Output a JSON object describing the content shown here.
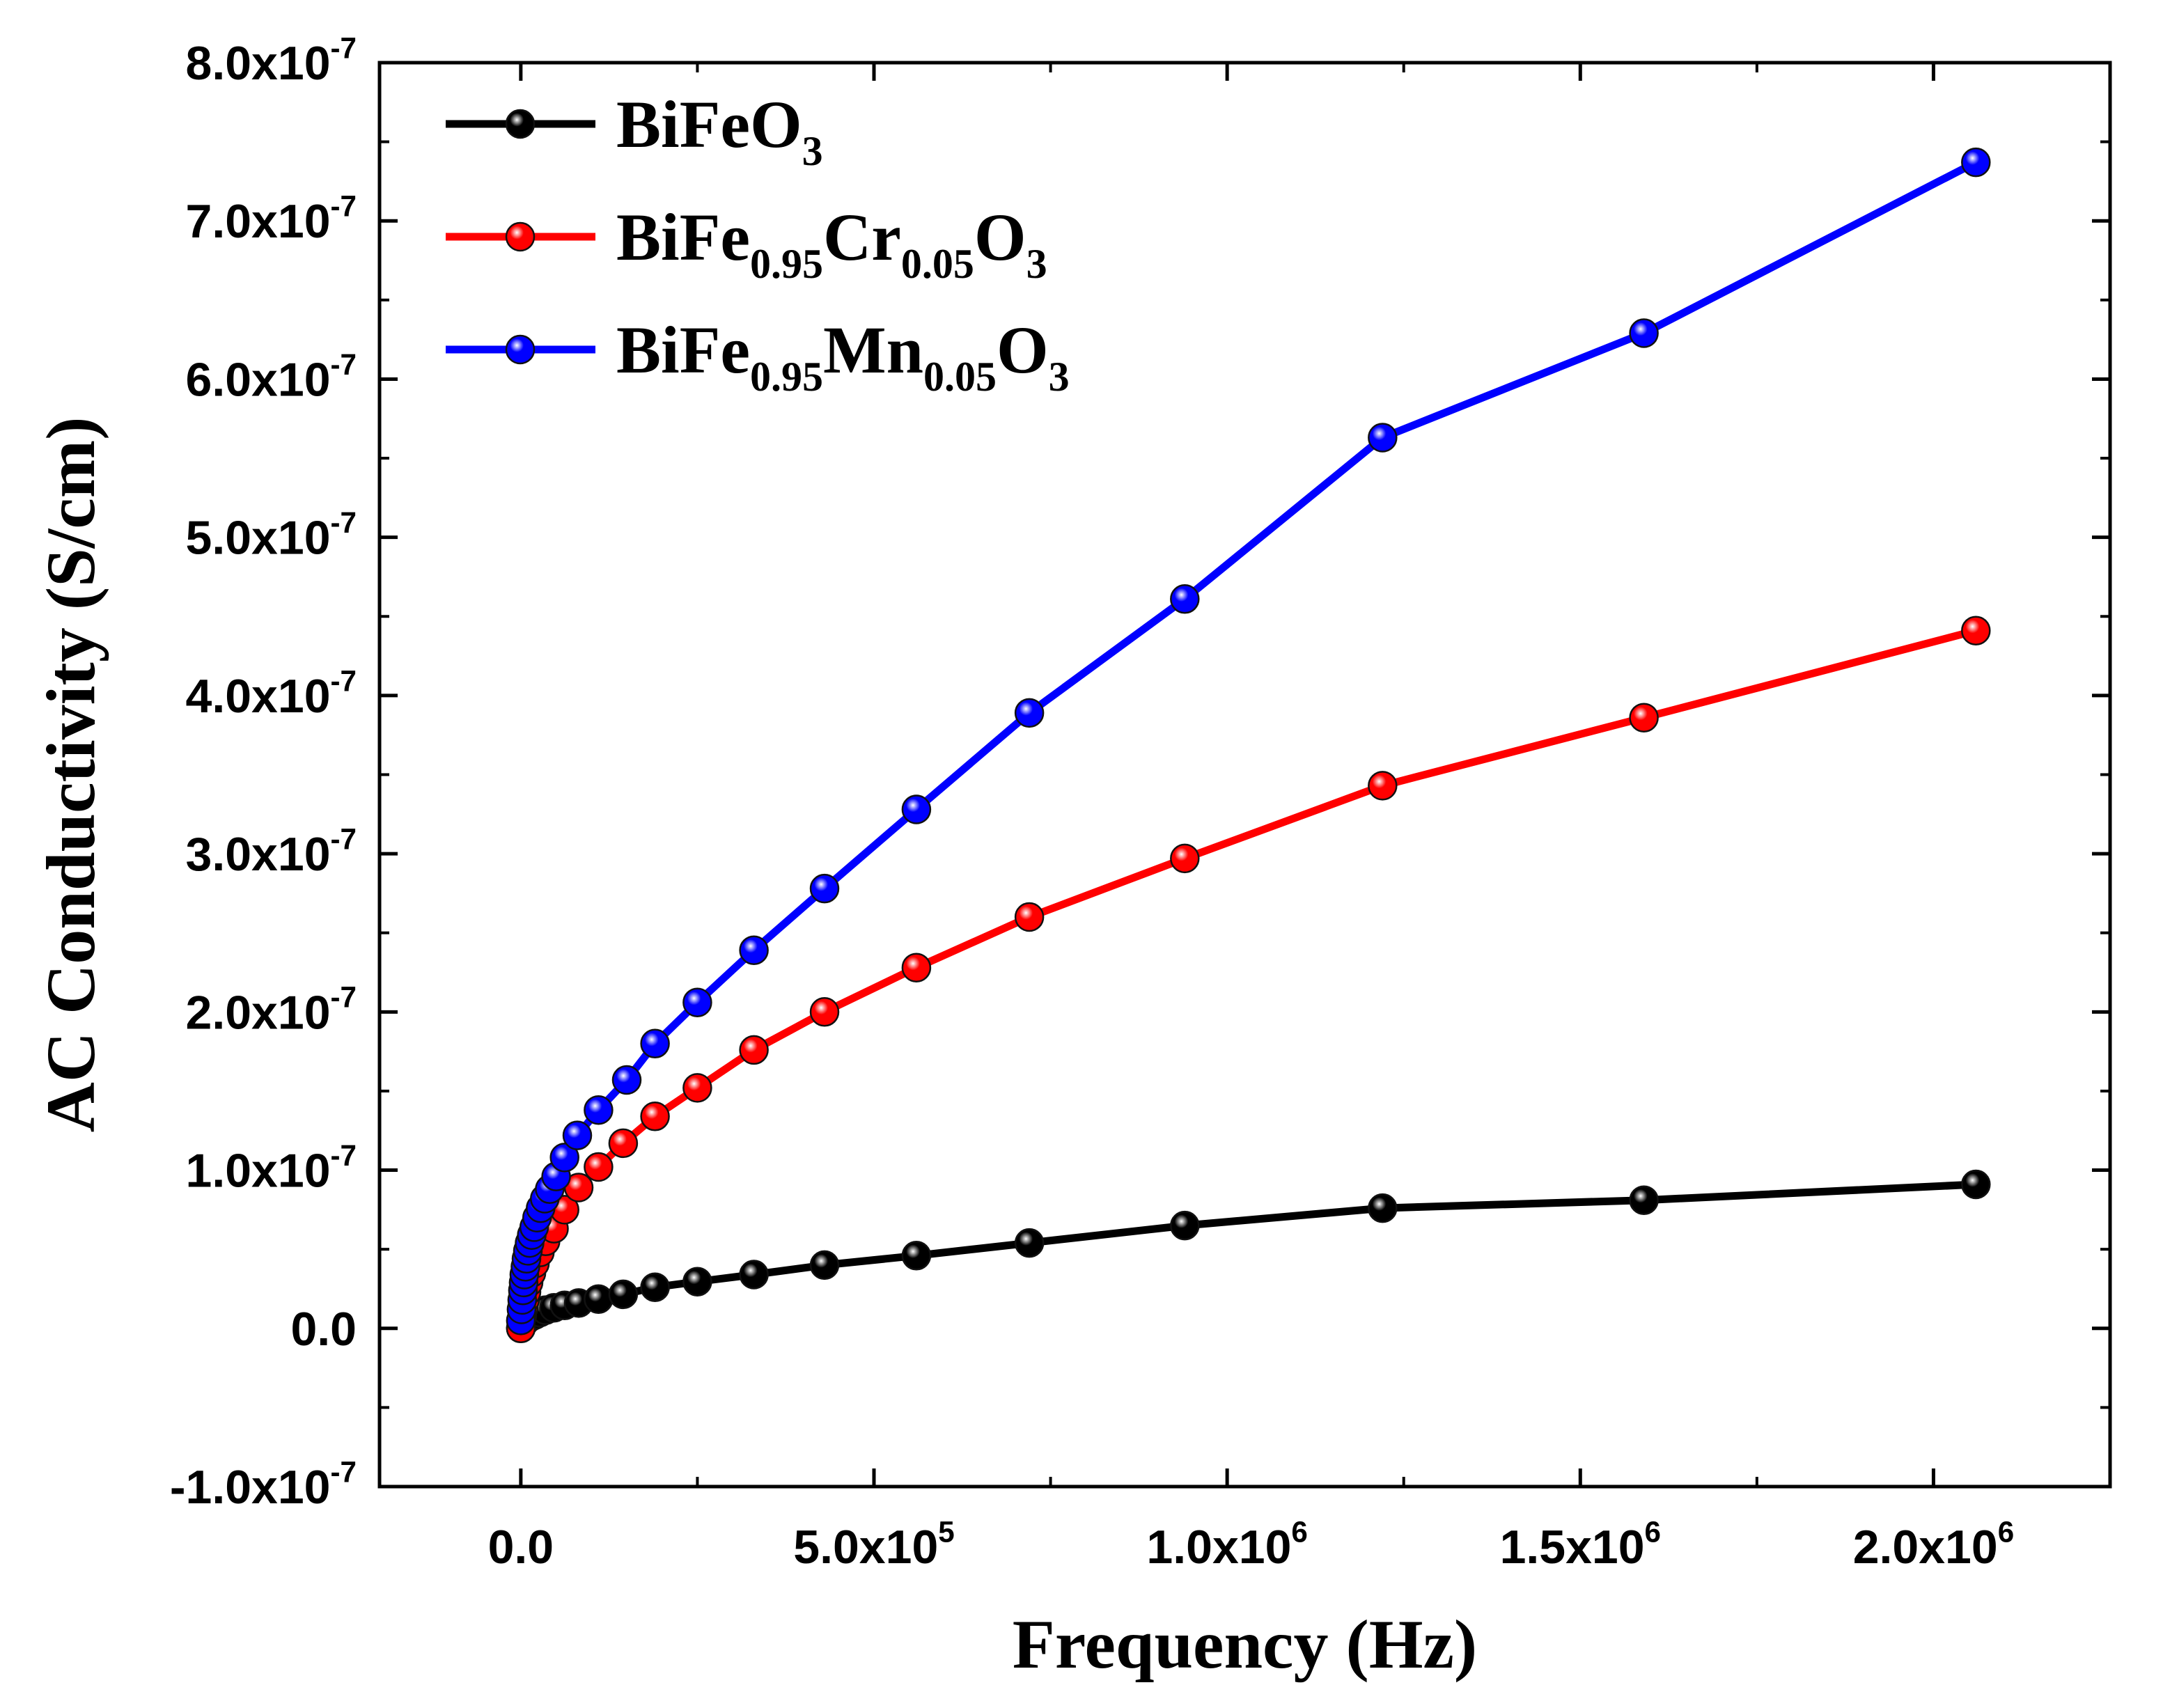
{
  "chart_data": {
    "type": "line",
    "title": "",
    "xlabel": "Frequency (Hz)",
    "ylabel": "AC Conductivity (S/cm)",
    "xlim": [
      -200000,
      2250000
    ],
    "ylim": [
      -1e-07,
      8e-07
    ],
    "grid": false,
    "legend_position": "top-left",
    "x_ticks": [
      {
        "value": 0,
        "mantissa": "0.0",
        "exp": ""
      },
      {
        "value": 500000,
        "mantissa": "5.0x10",
        "exp": "5"
      },
      {
        "value": 1000000,
        "mantissa": "1.0x10",
        "exp": "6"
      },
      {
        "value": 1500000,
        "mantissa": "1.5x10",
        "exp": "6"
      },
      {
        "value": 2000000,
        "mantissa": "2.0x10",
        "exp": "6"
      }
    ],
    "y_ticks": [
      {
        "value": -1e-07,
        "mantissa": "-1.0x10",
        "exp": "-7"
      },
      {
        "value": 0,
        "mantissa": "0.0",
        "exp": ""
      },
      {
        "value": 1e-07,
        "mantissa": "1.0x10",
        "exp": "-7"
      },
      {
        "value": 2e-07,
        "mantissa": "2.0x10",
        "exp": "-7"
      },
      {
        "value": 3e-07,
        "mantissa": "3.0x10",
        "exp": "-7"
      },
      {
        "value": 4e-07,
        "mantissa": "4.0x10",
        "exp": "-7"
      },
      {
        "value": 5e-07,
        "mantissa": "5.0x10",
        "exp": "-7"
      },
      {
        "value": 6e-07,
        "mantissa": "6.0x10",
        "exp": "-7"
      },
      {
        "value": 7e-07,
        "mantissa": "7.0x10",
        "exp": "-7"
      },
      {
        "value": 8e-07,
        "mantissa": "8.0x10",
        "exp": "-7"
      }
    ],
    "series": [
      {
        "name": "BiFeO3",
        "label_parts": [
          [
            "BiFeO",
            "n"
          ],
          [
            "3",
            "sub"
          ]
        ],
        "color": "#000000",
        "x": [
          0,
          2000,
          4000,
          6000,
          8000,
          11000,
          15000,
          20000,
          27000,
          35000,
          47000,
          62000,
          82000,
          110000,
          145000,
          190000,
          250000,
          330000,
          430000,
          560000,
          720000,
          940000,
          1220000,
          1590000,
          2060000
        ],
        "y": [
          0.0,
          2e-09,
          3.5e-09,
          4.5e-09,
          5.5e-09,
          6.5e-09,
          7.5e-09,
          8.5e-09,
          1e-08,
          1.15e-08,
          1.3e-08,
          1.45e-08,
          1.6e-08,
          1.85e-08,
          2.15e-08,
          2.6e-08,
          2.95e-08,
          3.4e-08,
          4e-08,
          4.6e-08,
          5.4e-08,
          6.5e-08,
          7.6e-08,
          8.1e-08,
          9.1e-08
        ]
      },
      {
        "name": "BiFe0.95Cr0.05O3",
        "label_parts": [
          [
            "BiFe",
            "n"
          ],
          [
            "0.95",
            "sub"
          ],
          [
            "Cr",
            "n"
          ],
          [
            "0.05",
            "sub"
          ],
          [
            "O",
            "n"
          ],
          [
            "3",
            "sub"
          ]
        ],
        "color": "#ff0000",
        "x": [
          0,
          2000,
          4000,
          6000,
          8000,
          11000,
          15000,
          20000,
          27000,
          35000,
          47000,
          62000,
          82000,
          110000,
          145000,
          190000,
          250000,
          330000,
          430000,
          560000,
          720000,
          940000,
          1220000,
          1590000,
          2060000
        ],
        "y": [
          0.0,
          8e-09,
          1.3e-08,
          1.8e-08,
          2.3e-08,
          2.9e-08,
          3.5e-08,
          4.1e-08,
          4.8e-08,
          5.5e-08,
          6.3e-08,
          7.5e-08,
          8.9e-08,
          1.02e-07,
          1.17e-07,
          1.34e-07,
          1.52e-07,
          1.76e-07,
          2e-07,
          2.28e-07,
          2.6e-07,
          2.97e-07,
          3.43e-07,
          3.86e-07,
          4.41e-07
        ]
      },
      {
        "name": "BiFe0.95Mn0.05O3",
        "label_parts": [
          [
            "BiFe",
            "n"
          ],
          [
            "0.95",
            "sub"
          ],
          [
            "Mn",
            "n"
          ],
          [
            "0.05",
            "sub"
          ],
          [
            "O",
            "n"
          ],
          [
            "3",
            "sub"
          ]
        ],
        "color": "#0000ff",
        "x": [
          0,
          1000,
          2000,
          3000,
          4000,
          5000,
          6500,
          8000,
          10000,
          12500,
          15500,
          19000,
          23000,
          28000,
          34000,
          41000,
          50000,
          62000,
          80000,
          110000,
          150000,
          190000,
          250000,
          330000,
          430000,
          560000,
          720000,
          940000,
          1220000,
          1590000,
          2060000
        ],
        "y": [
          5e-09,
          1.2e-08,
          1.8e-08,
          2.4e-08,
          2.9e-08,
          3.4e-08,
          3.9e-08,
          4.4e-08,
          4.9e-08,
          5.4e-08,
          5.9e-08,
          6.4e-08,
          7e-08,
          7.6e-08,
          8.2e-08,
          8.8e-08,
          9.6e-08,
          1.08e-07,
          1.22e-07,
          1.38e-07,
          1.57e-07,
          1.8e-07,
          2.06e-07,
          2.39e-07,
          2.78e-07,
          3.28e-07,
          3.89e-07,
          4.61e-07,
          5.63e-07,
          6.29e-07,
          7.37e-07
        ]
      }
    ]
  }
}
